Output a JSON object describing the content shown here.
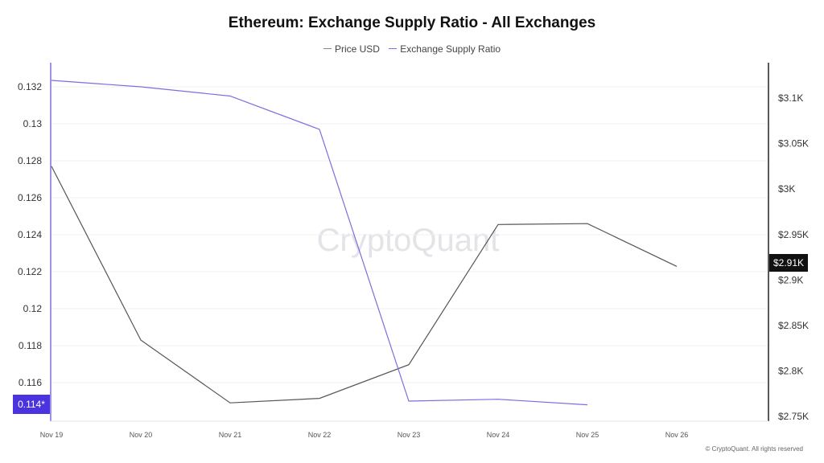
{
  "chart_data": {
    "type": "line",
    "title": "Ethereum: Exchange Supply Ratio - All Exchanges",
    "categories": [
      "Nov 19",
      "Nov 20",
      "Nov 21",
      "Nov 22",
      "Nov 23",
      "Nov 24",
      "Nov 25",
      "Nov 26"
    ],
    "series": [
      {
        "name": "Price USD",
        "axis": "right",
        "color": "#555555",
        "values": [
          3025,
          2834,
          2765,
          2770,
          2807,
          2961,
          2962,
          2915
        ]
      },
      {
        "name": "Exchange Supply Ratio",
        "axis": "left",
        "color": "#7b6ee0",
        "values": [
          0.13235,
          0.132,
          0.1315,
          0.1297,
          0.115,
          0.1151,
          0.1148,
          null
        ]
      }
    ],
    "left_axis": {
      "ticks": [
        "0.132",
        "0.13",
        "0.128",
        "0.126",
        "0.124",
        "0.122",
        "0.12",
        "0.118",
        "0.116"
      ],
      "ylim": [
        0.1142,
        0.1328
      ]
    },
    "right_axis": {
      "ticks": [
        "$3.1K",
        "$3.05K",
        "$3K",
        "$2.95K",
        "$2.9K",
        "$2.85K",
        "$2.8K",
        "$2.75K"
      ],
      "ylim": [
        2750,
        3100
      ]
    },
    "current_labels": {
      "left": "0.114*",
      "right": "$2.91K"
    },
    "left_label_color": "#4b33e0",
    "grid": true,
    "legend": "top-center",
    "watermark": "CryptoQuant"
  },
  "footer": "© CryptoQuant. All rights reserved"
}
